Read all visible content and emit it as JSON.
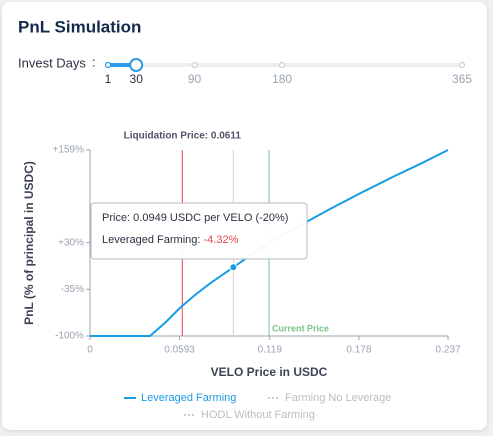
{
  "header": {
    "title": "PnL Simulation"
  },
  "slider": {
    "label": "Invest Days",
    "separator": ":",
    "marks": [
      1,
      30,
      90,
      180,
      365
    ],
    "value": 30,
    "min": 1,
    "max": 365
  },
  "chart_data": {
    "type": "line",
    "x_label": "VELO Price in USDC",
    "y_label": "PnL (% of principal in USDC)",
    "x": [
      0,
      0.0397,
      0.05,
      0.06,
      0.07,
      0.08,
      0.0949,
      0.11,
      0.1185,
      0.14,
      0.16,
      0.18,
      0.2,
      0.22,
      0.237
    ],
    "series": [
      {
        "name": "Leveraged Farming",
        "color": "#1a9be6",
        "visible": true,
        "values": [
          -100,
          -100,
          -81,
          -60,
          -42,
          -26,
          -4.32,
          18,
          30,
          55,
          78,
          100,
          121,
          141,
          159
        ],
        "value_labels": [
          null,
          null,
          null,
          null,
          null,
          null,
          "-4.32%",
          null,
          null,
          null,
          null,
          null,
          null,
          null,
          null
        ]
      },
      {
        "name": "Farming No Leverage",
        "color": "#c8ccd3",
        "visible": false,
        "values": [
          null,
          null,
          null,
          null,
          null,
          null,
          null,
          null,
          null,
          null,
          null,
          null,
          null,
          null,
          null
        ]
      },
      {
        "name": "HODL Without Farming",
        "color": "#c8ccd3",
        "visible": false,
        "values": [
          null,
          null,
          null,
          null,
          null,
          null,
          null,
          null,
          null,
          null,
          null,
          null,
          null,
          null,
          null
        ]
      }
    ],
    "xlim": [
      0,
      0.237
    ],
    "xticks": [
      0,
      0.0593,
      0.119,
      0.178,
      0.237
    ],
    "ylim": [
      -100,
      159
    ],
    "yticks": [
      {
        "value": 159,
        "label": "+159%"
      },
      {
        "value": 30,
        "label": "+30%"
      },
      {
        "value": -35,
        "label": "-35%"
      },
      {
        "value": -100,
        "label": "-100%"
      }
    ],
    "annotations": [
      {
        "label": "Liquidation Price: 0.0611",
        "x": 0.0611,
        "color": "#e0474c"
      },
      {
        "label": "Current Price",
        "x": 0.1185,
        "color": "#7dc08a"
      }
    ],
    "tooltip": {
      "index": 6,
      "text": "Price: 0.0949 USDC per VELO (-20%)",
      "series_label": "Leveraged Farming:",
      "line_color": "#cfd3d8"
    }
  }
}
